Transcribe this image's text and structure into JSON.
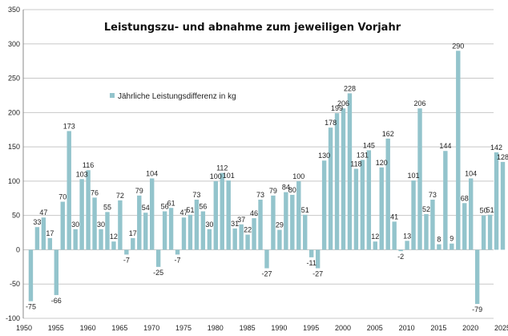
{
  "chart_data": {
    "type": "bar",
    "title": "Leistungszu- und abnahme zum jeweiligen Vorjahr",
    "xlabel": "",
    "ylabel": "",
    "legend": {
      "entries": [
        "Jährliche Leistungsdifferenz in kg"
      ],
      "placement": "upper-left inside plot"
    },
    "ylim": [
      -100,
      350
    ],
    "yticks": [
      -100,
      -50,
      0,
      50,
      100,
      150,
      200,
      250,
      300,
      350
    ],
    "xlim": [
      1950,
      2025
    ],
    "xticks": [
      1950,
      1955,
      1960,
      1965,
      1970,
      1975,
      1980,
      1985,
      1990,
      1995,
      2000,
      2005,
      2010,
      2015,
      2020,
      2025
    ],
    "grid": true,
    "bar_color": "#93c4cc",
    "series": [
      {
        "name": "Jährliche Leistungsdifferenz in kg",
        "x": [
          1951,
          1952,
          1953,
          1954,
          1955,
          1956,
          1957,
          1958,
          1959,
          1960,
          1961,
          1962,
          1963,
          1964,
          1965,
          1966,
          1967,
          1968,
          1969,
          1970,
          1971,
          1972,
          1973,
          1974,
          1975,
          1976,
          1977,
          1978,
          1979,
          1980,
          1981,
          1982,
          1983,
          1984,
          1985,
          1986,
          1987,
          1988,
          1989,
          1990,
          1991,
          1992,
          1993,
          1994,
          1995,
          1996,
          1997,
          1998,
          1999,
          2000,
          2001,
          2002,
          2003,
          2004,
          2005,
          2006,
          2007,
          2008,
          2009,
          2010,
          2011,
          2012,
          2013,
          2014,
          2015,
          2016,
          2017,
          2018,
          2019,
          2020,
          2021,
          2022,
          2023,
          2024,
          2025
        ],
        "values": [
          -75,
          33,
          47,
          17,
          -66,
          70,
          173,
          30,
          103,
          116,
          76,
          30,
          55,
          12,
          72,
          -7,
          17,
          79,
          54,
          104,
          -25,
          56,
          61,
          -7,
          47,
          51,
          73,
          56,
          30,
          100,
          112,
          101,
          31,
          37,
          22,
          46,
          73,
          -27,
          79,
          29,
          84,
          80,
          100,
          51,
          -11,
          -27,
          130,
          178,
          199,
          206,
          228,
          118,
          131,
          145,
          12,
          120,
          162,
          41,
          -2,
          13,
          101,
          206,
          52,
          73,
          8,
          144,
          9,
          290,
          68,
          104,
          -79,
          50,
          51,
          142,
          128
        ]
      }
    ]
  }
}
